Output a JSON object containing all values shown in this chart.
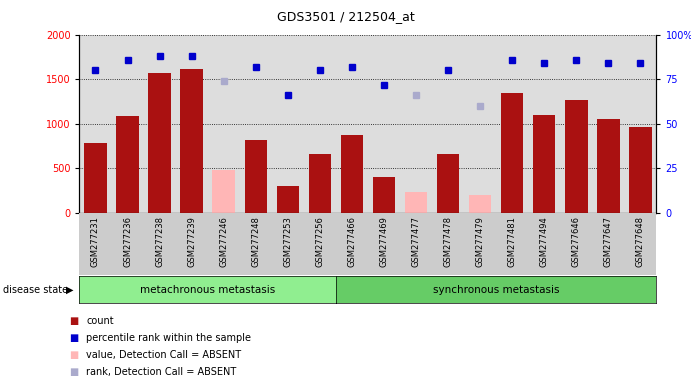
{
  "title": "GDS3501 / 212504_at",
  "samples": [
    "GSM277231",
    "GSM277236",
    "GSM277238",
    "GSM277239",
    "GSM277246",
    "GSM277248",
    "GSM277253",
    "GSM277256",
    "GSM277466",
    "GSM277469",
    "GSM277477",
    "GSM277478",
    "GSM277479",
    "GSM277481",
    "GSM277494",
    "GSM277646",
    "GSM277647",
    "GSM277648"
  ],
  "counts": [
    780,
    1090,
    1570,
    1610,
    null,
    820,
    300,
    660,
    880,
    410,
    null,
    660,
    null,
    1350,
    1100,
    1270,
    1050,
    970
  ],
  "absent_values": [
    null,
    null,
    null,
    null,
    480,
    null,
    null,
    null,
    null,
    null,
    240,
    null,
    200,
    null,
    null,
    null,
    null,
    null
  ],
  "percentile_ranks": [
    80,
    86,
    88,
    88,
    null,
    82,
    66,
    80,
    82,
    72,
    null,
    80,
    null,
    86,
    84,
    86,
    84,
    84
  ],
  "absent_ranks": [
    null,
    null,
    null,
    null,
    74,
    null,
    null,
    null,
    null,
    null,
    66,
    null,
    60,
    null,
    null,
    null,
    null,
    null
  ],
  "n_metachronous": 8,
  "n_synchronous": 10,
  "group_labels": [
    "metachronous metastasis",
    "synchronous metastasis"
  ],
  "group_colors": [
    "#90ee90",
    "#66cc66"
  ],
  "bar_color_present": "#aa1111",
  "bar_color_absent": "#ffb6b6",
  "dot_color_present": "#0000cc",
  "dot_color_absent": "#aaaacc",
  "ylim_left": [
    0,
    2000
  ],
  "ylim_right": [
    0,
    100
  ],
  "yticks_left": [
    0,
    500,
    1000,
    1500,
    2000
  ],
  "yticks_right": [
    0,
    25,
    50,
    75,
    100
  ],
  "ytick_labels_right": [
    "0",
    "25",
    "50",
    "75",
    "100%"
  ],
  "background_color": "#ffffff",
  "plot_bg_color": "#dddddd",
  "grid_color": "#000000"
}
